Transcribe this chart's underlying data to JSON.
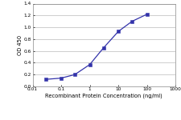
{
  "x": [
    0.03,
    0.1,
    0.3,
    1,
    3,
    10,
    30,
    100
  ],
  "y": [
    0.12,
    0.14,
    0.2,
    0.37,
    0.65,
    0.93,
    1.1,
    1.22
  ],
  "line_color": "#3333aa",
  "marker_color": "#3333aa",
  "marker_style": "s",
  "marker_size": 2.2,
  "line_width": 0.9,
  "xlabel": "Recombinant Protein Concentration (ng/ml)",
  "ylabel": "OD 450",
  "xlim": [
    0.01,
    1000
  ],
  "ylim": [
    0.0,
    1.4
  ],
  "yticks": [
    0.0,
    0.2,
    0.4,
    0.6,
    0.8,
    1.0,
    1.2,
    1.4
  ],
  "xtick_vals": [
    0.01,
    0.1,
    1,
    10,
    100,
    1000
  ],
  "xtick_labels": [
    "0.01",
    "0.1",
    "1",
    "10",
    "100",
    "1000"
  ],
  "xlabel_fontsize": 4.8,
  "ylabel_fontsize": 4.8,
  "tick_fontsize": 4.2,
  "background_color": "#ffffff",
  "grid_color": "#bbbbbb"
}
